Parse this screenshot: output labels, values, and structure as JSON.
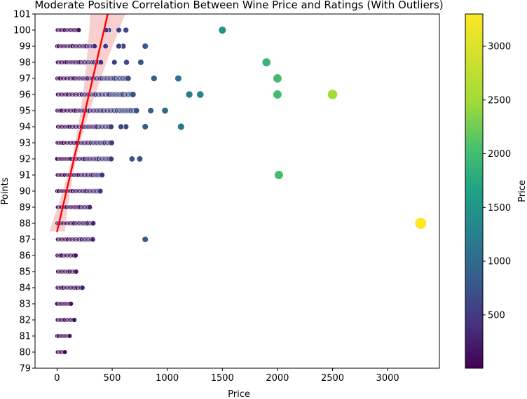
{
  "chart_data": {
    "type": "scatter",
    "title": "Moderate Positive Correlation Between Wine Price and Ratings (With Outliers)",
    "xlabel": "Price",
    "ylabel": "Points",
    "xlim": [
      -200,
      3470
    ],
    "ylim": [
      79,
      101
    ],
    "xticks": [
      0,
      500,
      1000,
      1500,
      2000,
      2500,
      3000
    ],
    "yticks": [
      79,
      80,
      81,
      82,
      83,
      84,
      85,
      86,
      87,
      88,
      89,
      90,
      91,
      92,
      93,
      94,
      95,
      96,
      97,
      98,
      99,
      100,
      101
    ],
    "grid": false,
    "colorbar": {
      "label": "Price",
      "colormap": "viridis",
      "range": [
        4,
        3300
      ],
      "ticks": [
        500,
        1000,
        1500,
        2000,
        2500,
        3000
      ]
    },
    "regression_line": {
      "color": "#ff0000",
      "x": [
        0,
        460
      ],
      "y": [
        87.5,
        101
      ],
      "ci_color": "#f4a6a6"
    },
    "series": [
      {
        "marker": "circle",
        "colored_by": "Price",
        "dense_bands": [
          {
            "y": 80,
            "x_max": 75
          },
          {
            "y": 81,
            "x_max": 120
          },
          {
            "y": 82,
            "x_max": 160
          },
          {
            "y": 83,
            "x_max": 135
          },
          {
            "y": 84,
            "x_max": 230
          },
          {
            "y": 85,
            "x_max": 175
          },
          {
            "y": 86,
            "x_max": 180
          },
          {
            "y": 87,
            "x_max": 330
          },
          {
            "y": 88,
            "x_max": 330
          },
          {
            "y": 89,
            "x_max": 300
          },
          {
            "y": 90,
            "x_max": 400
          },
          {
            "y": 91,
            "x_max": 410
          },
          {
            "y": 92,
            "x_max": 500
          },
          {
            "y": 93,
            "x_max": 500
          },
          {
            "y": 94,
            "x_max": 500
          },
          {
            "y": 95,
            "x_max": 720
          },
          {
            "y": 96,
            "x_max": 690
          },
          {
            "y": 97,
            "x_max": 660
          },
          {
            "y": 98,
            "x_max": 400
          },
          {
            "y": 99,
            "x_max": 340
          },
          {
            "y": 100,
            "x_max": 200
          }
        ],
        "points": [
          {
            "x": 3300,
            "y": 88
          },
          {
            "x": 2500,
            "y": 96
          },
          {
            "x": 2013,
            "y": 91
          },
          {
            "x": 2000,
            "y": 96
          },
          {
            "x": 2000,
            "y": 97
          },
          {
            "x": 1900,
            "y": 98
          },
          {
            "x": 1500,
            "y": 100
          },
          {
            "x": 1300,
            "y": 96
          },
          {
            "x": 1200,
            "y": 96
          },
          {
            "x": 1125,
            "y": 94
          },
          {
            "x": 1100,
            "y": 97
          },
          {
            "x": 980,
            "y": 95
          },
          {
            "x": 880,
            "y": 97
          },
          {
            "x": 850,
            "y": 95
          },
          {
            "x": 800,
            "y": 99
          },
          {
            "x": 800,
            "y": 94
          },
          {
            "x": 800,
            "y": 87
          },
          {
            "x": 760,
            "y": 98
          },
          {
            "x": 750,
            "y": 92
          },
          {
            "x": 680,
            "y": 92
          },
          {
            "x": 630,
            "y": 98
          },
          {
            "x": 625,
            "y": 94
          },
          {
            "x": 625,
            "y": 100
          },
          {
            "x": 600,
            "y": 99
          },
          {
            "x": 580,
            "y": 94
          },
          {
            "x": 560,
            "y": 100
          },
          {
            "x": 560,
            "y": 99
          },
          {
            "x": 520,
            "y": 98
          },
          {
            "x": 470,
            "y": 100
          },
          {
            "x": 445,
            "y": 100
          },
          {
            "x": 440,
            "y": 99
          }
        ]
      }
    ]
  }
}
